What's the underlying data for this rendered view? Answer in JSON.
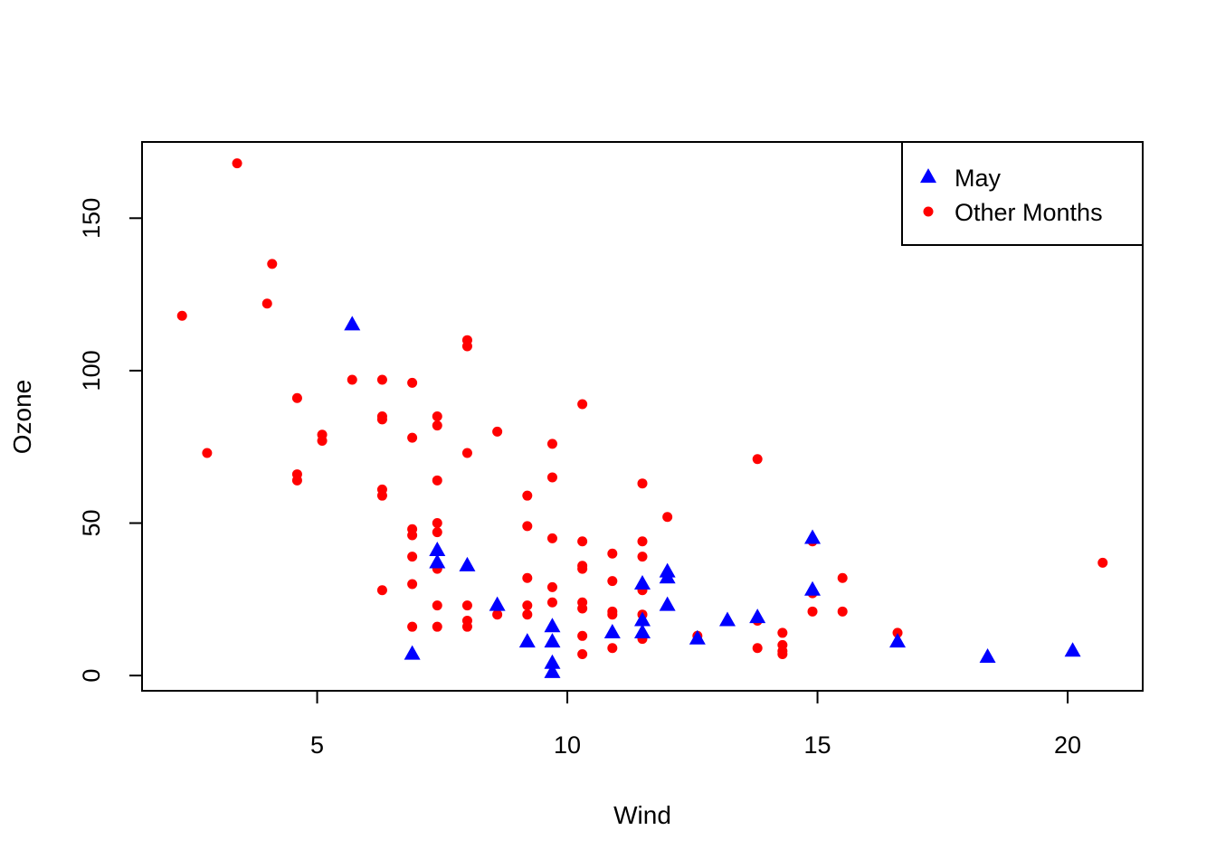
{
  "chart_data": {
    "type": "scatter",
    "xlabel": "Wind",
    "ylabel": "Ozone",
    "xlim": [
      1.5,
      21.5
    ],
    "ylim": [
      -5,
      175
    ],
    "xticks": [
      5,
      10,
      15,
      20
    ],
    "yticks": [
      0,
      50,
      100,
      150
    ],
    "grid": false,
    "legend_position": "top-right",
    "series": [
      {
        "name": "May",
        "marker": "triangle",
        "color": "#0000ff",
        "points": [
          [
            5.7,
            115
          ],
          [
            7.4,
            41
          ],
          [
            7.4,
            37
          ],
          [
            8.0,
            36
          ],
          [
            6.9,
            7
          ],
          [
            8.6,
            23
          ],
          [
            9.2,
            11
          ],
          [
            9.7,
            16
          ],
          [
            9.7,
            11
          ],
          [
            9.7,
            4
          ],
          [
            9.7,
            1
          ],
          [
            10.9,
            14
          ],
          [
            11.5,
            30
          ],
          [
            11.5,
            18
          ],
          [
            11.5,
            14
          ],
          [
            12.0,
            34
          ],
          [
            12.0,
            32
          ],
          [
            12.0,
            23
          ],
          [
            12.6,
            12
          ],
          [
            13.2,
            18
          ],
          [
            13.8,
            19
          ],
          [
            14.9,
            45
          ],
          [
            14.9,
            28
          ],
          [
            16.6,
            11
          ],
          [
            18.4,
            6
          ],
          [
            20.1,
            8
          ]
        ]
      },
      {
        "name": "Other Months",
        "marker": "circle",
        "color": "#ff0000",
        "points": [
          [
            3.4,
            168
          ],
          [
            4.1,
            135
          ],
          [
            4.0,
            122
          ],
          [
            2.3,
            118
          ],
          [
            2.8,
            73
          ],
          [
            8.0,
            110
          ],
          [
            8.0,
            108
          ],
          [
            5.7,
            97
          ],
          [
            6.3,
            97
          ],
          [
            6.9,
            96
          ],
          [
            4.6,
            91
          ],
          [
            10.3,
            89
          ],
          [
            6.3,
            85
          ],
          [
            6.3,
            84
          ],
          [
            7.4,
            85
          ],
          [
            7.4,
            82
          ],
          [
            8.6,
            80
          ],
          [
            5.1,
            79
          ],
          [
            5.1,
            77
          ],
          [
            6.9,
            78
          ],
          [
            9.7,
            76
          ],
          [
            8.0,
            73
          ],
          [
            13.8,
            71
          ],
          [
            4.6,
            66
          ],
          [
            4.6,
            64
          ],
          [
            7.4,
            64
          ],
          [
            9.7,
            65
          ],
          [
            11.5,
            63
          ],
          [
            6.3,
            61
          ],
          [
            6.3,
            59
          ],
          [
            9.2,
            59
          ],
          [
            12.0,
            52
          ],
          [
            7.4,
            50
          ],
          [
            6.9,
            48
          ],
          [
            6.9,
            46
          ],
          [
            7.4,
            47
          ],
          [
            9.2,
            49
          ],
          [
            9.7,
            45
          ],
          [
            10.3,
            44
          ],
          [
            11.5,
            44
          ],
          [
            14.9,
            44
          ],
          [
            10.9,
            40
          ],
          [
            11.5,
            39
          ],
          [
            6.9,
            39
          ],
          [
            7.4,
            35
          ],
          [
            10.3,
            36
          ],
          [
            10.3,
            35
          ],
          [
            20.7,
            37
          ],
          [
            9.2,
            32
          ],
          [
            10.9,
            31
          ],
          [
            15.5,
            32
          ],
          [
            6.9,
            30
          ],
          [
            9.7,
            29
          ],
          [
            11.5,
            28
          ],
          [
            6.3,
            28
          ],
          [
            14.9,
            27
          ],
          [
            7.4,
            23
          ],
          [
            8.0,
            23
          ],
          [
            9.2,
            23
          ],
          [
            9.7,
            24
          ],
          [
            10.3,
            24
          ],
          [
            10.3,
            22
          ],
          [
            10.9,
            21
          ],
          [
            10.9,
            20
          ],
          [
            11.5,
            20
          ],
          [
            8.6,
            20
          ],
          [
            9.2,
            20
          ],
          [
            14.9,
            21
          ],
          [
            15.5,
            21
          ],
          [
            8.0,
            18
          ],
          [
            8.0,
            16
          ],
          [
            6.9,
            16
          ],
          [
            7.4,
            16
          ],
          [
            13.8,
            18
          ],
          [
            14.3,
            14
          ],
          [
            16.6,
            14
          ],
          [
            10.3,
            13
          ],
          [
            11.5,
            12
          ],
          [
            12.6,
            13
          ],
          [
            10.9,
            9
          ],
          [
            13.8,
            9
          ],
          [
            14.3,
            10
          ],
          [
            14.3,
            8
          ],
          [
            14.3,
            7
          ],
          [
            10.3,
            7
          ]
        ]
      }
    ]
  }
}
